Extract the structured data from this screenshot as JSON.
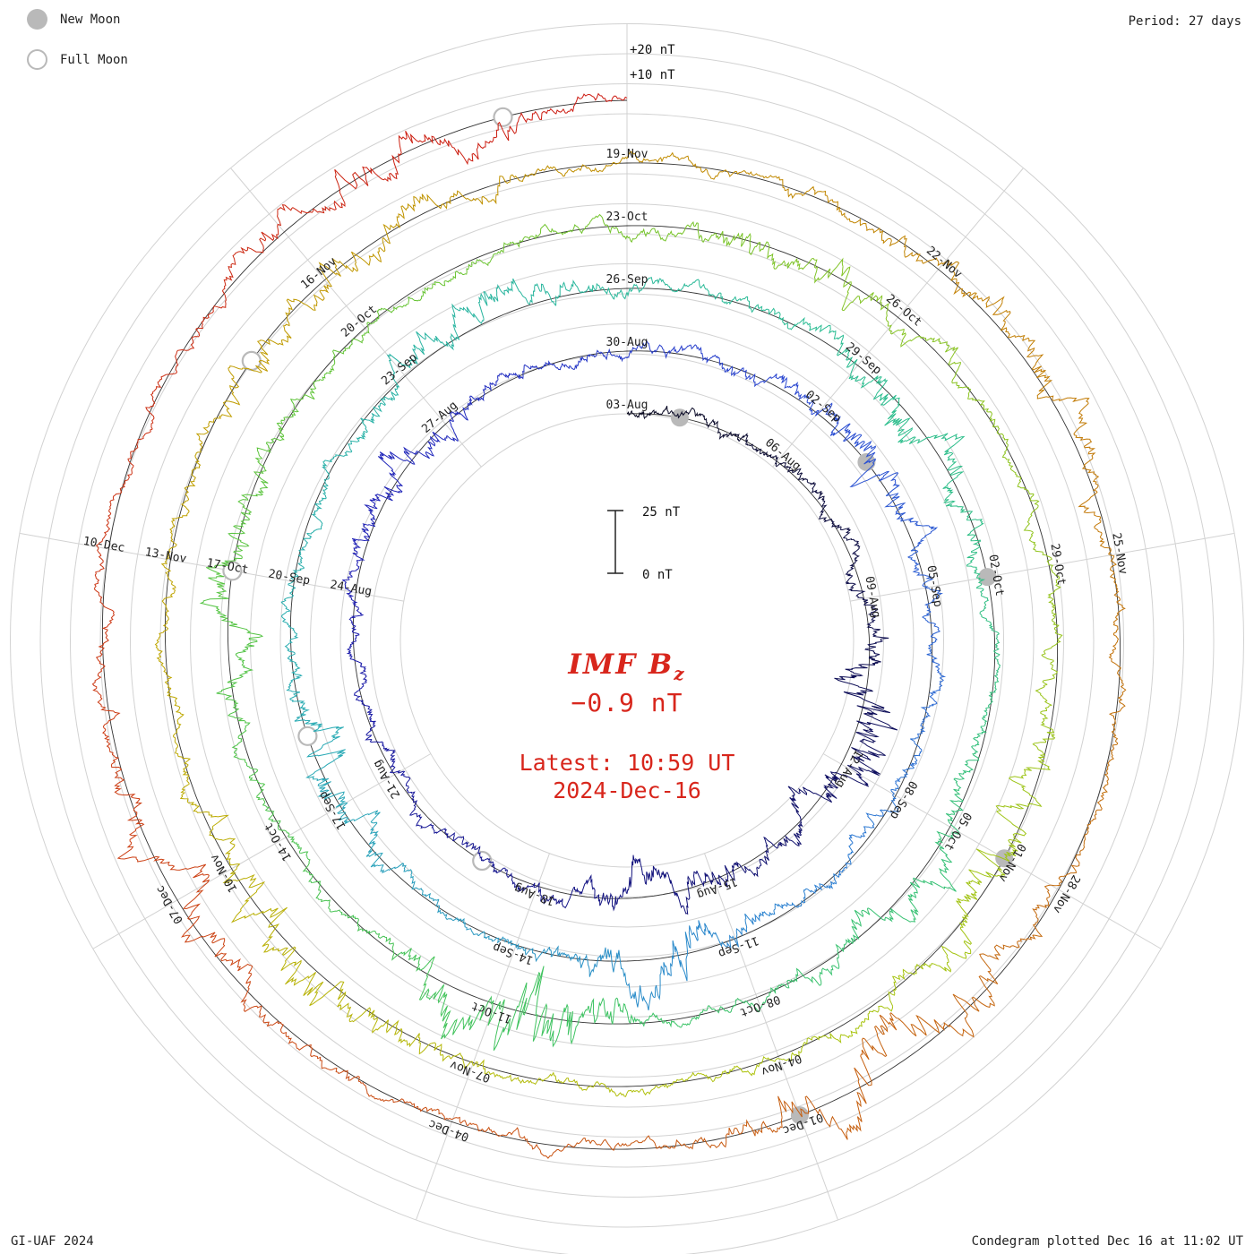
{
  "legend": {
    "new_moon": "New Moon",
    "full_moon": "Full Moon"
  },
  "header": {
    "period": "Period: 27 days"
  },
  "footer": {
    "left": "GI-UAF 2024",
    "right": "Condegram plotted Dec 16 at 11:02 UT"
  },
  "center": {
    "title_main": "IMF B",
    "title_sub": "z",
    "value": "−0.9 nT",
    "latest_line1": "Latest: 10:59 UT",
    "latest_line2": "2024-Dec-16"
  },
  "chart_data": {
    "type": "line",
    "subtype": "condegram-spiral",
    "series_label": "IMF Bz (nT)",
    "period_days": 27,
    "total_days": 135,
    "start_date": "2024-Aug-03",
    "end_date": "2024-Dec-16",
    "direction": "time runs clockwise and spirals outward",
    "latest_value_nT": -0.9,
    "spoke_step_days": 3,
    "spoke_angles_deg": [
      0,
      40,
      80,
      120,
      160,
      200,
      240,
      280,
      320
    ],
    "turn_start_dates": [
      "03-Aug",
      "30-Aug",
      "26-Sep",
      "23-Oct",
      "19-Nov"
    ],
    "date_labels": [
      [
        "03-Aug",
        "06-Aug",
        "09-Aug",
        "12-Aug",
        "15-Aug",
        "18-Aug",
        "21-Aug",
        "24-Aug",
        "27-Aug"
      ],
      [
        "30-Aug",
        "02-Sep",
        "05-Sep",
        "08-Sep",
        "11-Sep",
        "14-Sep",
        "17-Sep",
        "20-Sep",
        "23-Sep"
      ],
      [
        "26-Sep",
        "29-Sep",
        "02-Oct",
        "05-Oct",
        "08-Oct",
        "11-Oct",
        "14-Oct",
        "17-Oct",
        "20-Oct"
      ],
      [
        "23-Oct",
        "26-Oct",
        "29-Oct",
        "01-Nov",
        "04-Nov",
        "07-Nov",
        "10-Nov",
        "13-Nov",
        "16-Nov"
      ],
      [
        "19-Nov",
        "22-Nov",
        "25-Nov",
        "28-Nov",
        "01-Dec",
        "04-Dec",
        "07-Dec",
        "10-Dec",
        null
      ]
    ],
    "radial_annotations": {
      "plus10": "+10 nT",
      "plus20": "+20 nT"
    },
    "scale_bar": {
      "top_label": "25 nT",
      "bottom_label": "0 nT",
      "span_nT": 25
    },
    "moons": {
      "new": [
        {
          "date": "2024-Aug-04",
          "day": 1
        },
        {
          "date": "2024-Sep-03",
          "day": 31
        },
        {
          "date": "2024-Oct-02",
          "day": 60
        },
        {
          "date": "2024-Nov-01",
          "day": 90
        },
        {
          "date": "2024-Dec-01",
          "day": 120
        }
      ],
      "full": [
        {
          "date": "2024-Aug-19",
          "day": 16
        },
        {
          "date": "2024-Sep-18",
          "day": 46
        },
        {
          "date": "2024-Oct-17",
          "day": 75
        },
        {
          "date": "2024-Nov-15",
          "day": 104
        },
        {
          "date": "2024-Dec-15",
          "day": 134
        }
      ]
    },
    "colors": {
      "accent_red": "#d8261c",
      "grid": "#d2d2d2",
      "baseline": "#333333",
      "moon": "#b9b9b9"
    },
    "color_stops": [
      [
        0.0,
        "#0a0a20"
      ],
      [
        0.08,
        "#10106e"
      ],
      [
        0.16,
        "#1d1db4"
      ],
      [
        0.22,
        "#2b49d2"
      ],
      [
        0.28,
        "#2b7fd2"
      ],
      [
        0.34,
        "#28aab4"
      ],
      [
        0.42,
        "#2bbd92"
      ],
      [
        0.5,
        "#3cc364"
      ],
      [
        0.57,
        "#5ec438"
      ],
      [
        0.63,
        "#8cc422"
      ],
      [
        0.69,
        "#adc40e"
      ],
      [
        0.75,
        "#bfa500"
      ],
      [
        0.81,
        "#c18800"
      ],
      [
        0.87,
        "#c4690e"
      ],
      [
        0.93,
        "#cc4414"
      ],
      [
        1.0,
        "#cc1810"
      ]
    ],
    "bz_profile": {
      "base_amplitude_nT": 4.5,
      "storms": [
        {
          "day": 8.5,
          "amp": 15,
          "width": 1.6
        },
        {
          "day": 13,
          "amp": 9,
          "width": 1.4
        },
        {
          "day": 23,
          "amp": 7,
          "width": 1.2
        },
        {
          "day": 31,
          "amp": 8,
          "width": 1.5
        },
        {
          "day": 40,
          "amp": 14,
          "width": 1.0
        },
        {
          "day": 45.5,
          "amp": 11,
          "width": 1.2
        },
        {
          "day": 52,
          "amp": 8,
          "width": 1.5
        },
        {
          "day": 58,
          "amp": 11,
          "width": 1.3
        },
        {
          "day": 64,
          "amp": 10,
          "width": 1.2
        },
        {
          "day": 68.7,
          "amp": 32,
          "width": 1.0
        },
        {
          "day": 75,
          "amp": 9,
          "width": 1.5
        },
        {
          "day": 83,
          "amp": 8,
          "width": 1.5
        },
        {
          "day": 90,
          "amp": 10,
          "width": 1.5
        },
        {
          "day": 98,
          "amp": 14,
          "width": 1.3
        },
        {
          "day": 105,
          "amp": 8,
          "width": 1.5
        },
        {
          "day": 112,
          "amp": 9,
          "width": 1.5
        },
        {
          "day": 119,
          "amp": 16,
          "width": 1.4
        },
        {
          "day": 126,
          "amp": 10,
          "width": 1.3
        },
        {
          "day": 133,
          "amp": 11,
          "width": 1.2
        }
      ]
    }
  }
}
